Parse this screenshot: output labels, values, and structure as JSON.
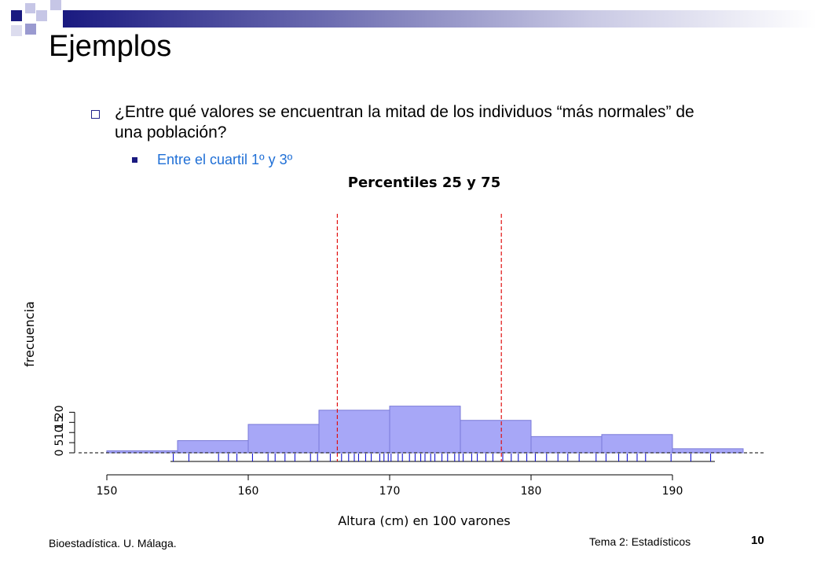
{
  "slide": {
    "title": "Ejemplos",
    "question": "¿Entre qué valores se encuentran la mitad de los individuos “más normales” de una población?",
    "answer": "Entre el cuartil 1º y 3º",
    "footer_left": "Bioestadística. U. Málaga.",
    "footer_right": "Tema 2: Estadísticos",
    "page_number": "10"
  },
  "colors": {
    "bar_fill": "#a7a7f7",
    "bar_stroke": "#7a7ad8",
    "quartile_line": "#e01010",
    "rug": "#0000cc",
    "answer_text": "#1f6fd6",
    "accent": "#1a1a80"
  },
  "chart_data": {
    "type": "bar",
    "title": "Percentiles 25 y 75",
    "xlabel": "Altura (cm) en 100 varones",
    "ylabel": "frecuencia",
    "bin_edges": [
      150,
      155,
      160,
      165,
      170,
      175,
      180,
      185,
      190,
      195
    ],
    "values": [
      1,
      6,
      14,
      21,
      23,
      16,
      8,
      9,
      2
    ],
    "xlim": [
      150,
      195
    ],
    "ylim": [
      0,
      23
    ],
    "x_ticks": [
      "150",
      "160",
      "170",
      "180",
      "190"
    ],
    "y_ticks": [
      "0",
      "5",
      "10",
      "15",
      "20"
    ],
    "quartiles": [
      166.3,
      177.9
    ],
    "rug": [
      154.7,
      155.8,
      157.9,
      158.6,
      159.2,
      160.3,
      161.4,
      161.9,
      162.6,
      163.3,
      164.4,
      164.9,
      165.8,
      166.6,
      167.1,
      167.5,
      167.8,
      168.3,
      168.7,
      169.3,
      169.6,
      169.9,
      170.1,
      170.6,
      170.9,
      171.4,
      171.8,
      172.2,
      172.5,
      172.9,
      173.2,
      173.7,
      174.1,
      174.6,
      174.9,
      175.2,
      175.8,
      176.2,
      176.8,
      177.3,
      178.0,
      178.6,
      179.1,
      179.7,
      180.3,
      181.1,
      181.9,
      182.6,
      183.4,
      184.6,
      185.3,
      186.2,
      186.8,
      187.5,
      188.1,
      189.9,
      191.3,
      192.7
    ],
    "grid": false
  }
}
